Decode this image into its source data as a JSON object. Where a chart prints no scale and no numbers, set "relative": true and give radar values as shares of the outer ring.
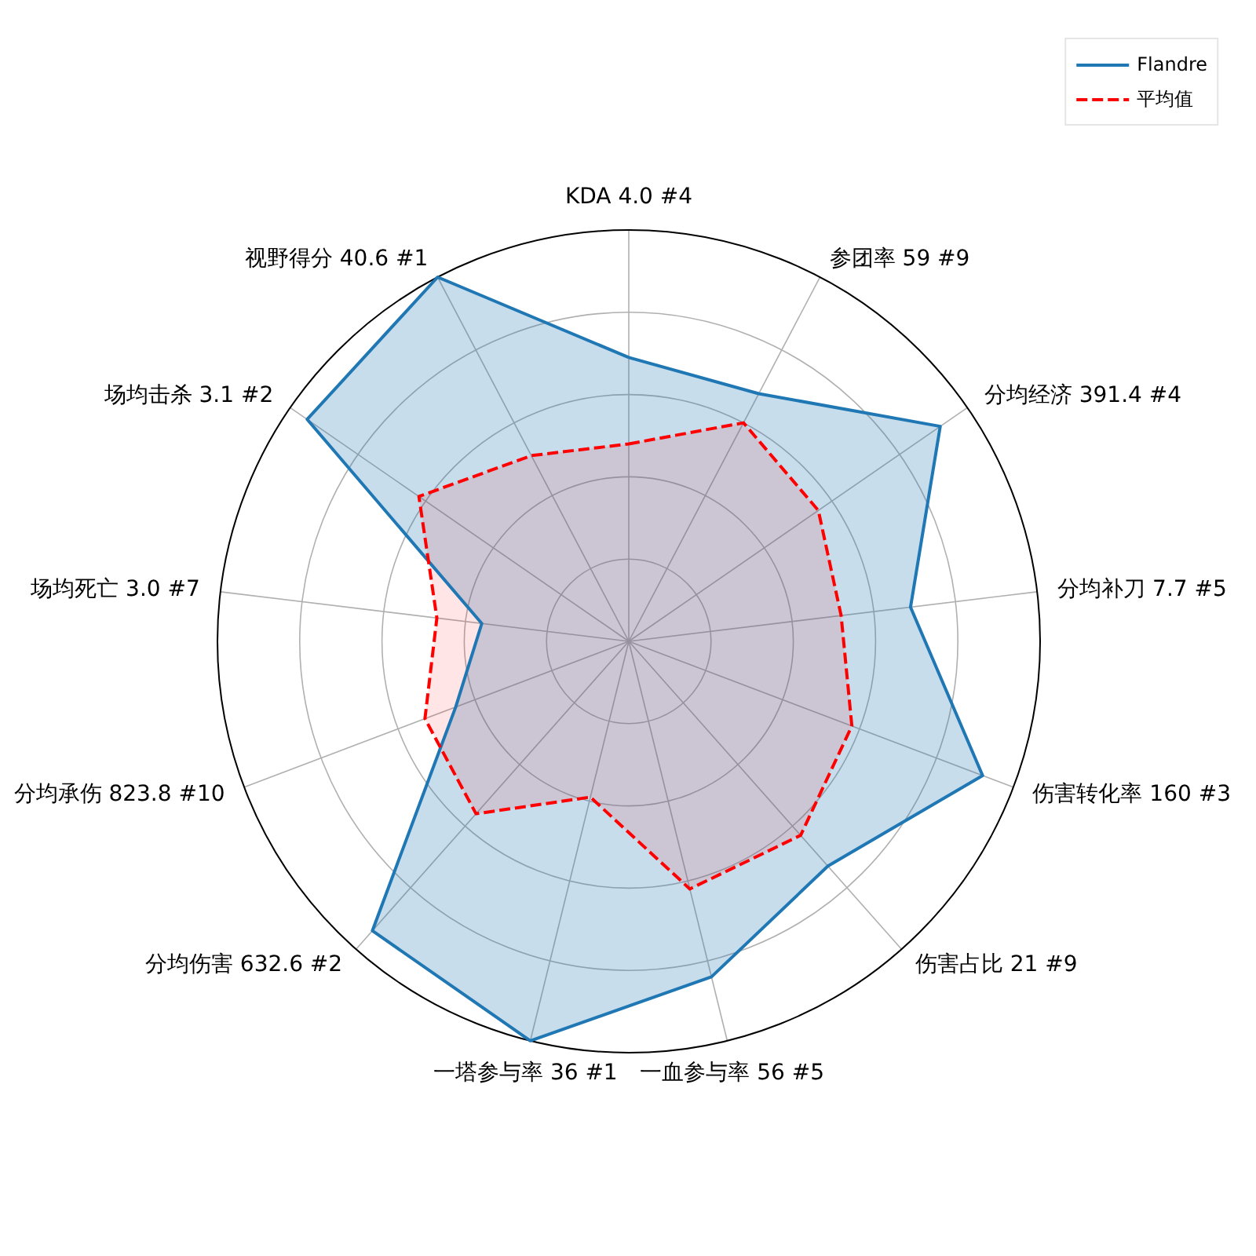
{
  "chart_data": {
    "type": "radar",
    "relative": true,
    "categories": [
      "KDA 4.0 #4",
      "参团率 59 #9",
      "分均经济 391.4 #4",
      "分均补刀 7.7 #5",
      "伤害转化率 160 #3",
      "伤害占比 21 #9",
      "一血参与率 56 #5",
      "一塔参与率 36 #1",
      "分均伤害 632.6 #2",
      "分均承伤 823.8 #10",
      "场均死亡 3.0 #7",
      "场均击杀 3.1 #2",
      "视野得分 40.6 #1"
    ],
    "series": [
      {
        "name": "Flandre",
        "color": "#1f77b4",
        "line_style": "solid",
        "values": [
          0.69,
          0.68,
          0.92,
          0.69,
          0.92,
          0.73,
          0.84,
          1.0,
          0.94,
          0.45,
          0.36,
          0.95,
          1.0
        ]
      },
      {
        "name": "平均值",
        "color": "#ff0000",
        "line_style": "dashed",
        "values": [
          0.48,
          0.6,
          0.56,
          0.52,
          0.58,
          0.63,
          0.62,
          0.39,
          0.56,
          0.53,
          0.47,
          0.62,
          0.51
        ]
      }
    ],
    "grid": true,
    "legend": "top right"
  }
}
